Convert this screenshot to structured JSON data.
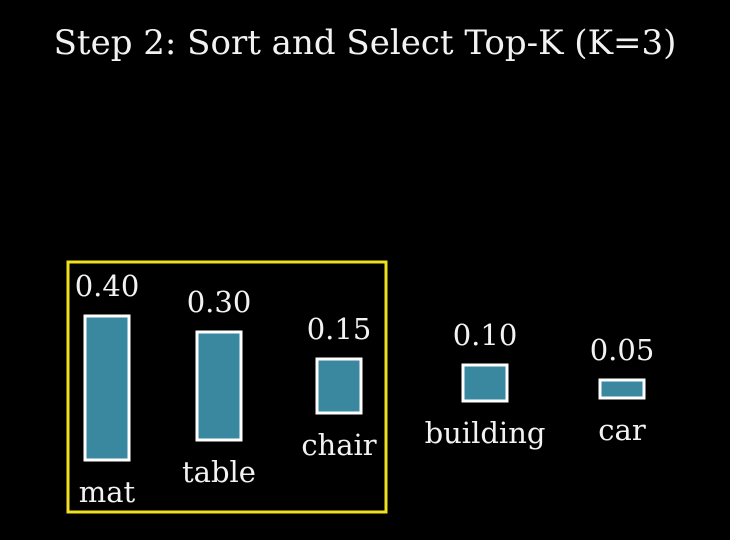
{
  "title": "Step 2: Sort and Select Top-K (K=3)",
  "colors": {
    "background": "#000000",
    "bar_fill": "#3a87a0",
    "bar_stroke": "#ffffff",
    "highlight": "#f0e020",
    "text": "#f2f2f2"
  },
  "selection": {
    "k": 3,
    "highlighted_items": [
      "mat",
      "table",
      "chair"
    ]
  },
  "chart_data": {
    "type": "bar",
    "categories": [
      "mat",
      "table",
      "chair",
      "building",
      "car"
    ],
    "values": [
      0.4,
      0.3,
      0.15,
      0.1,
      0.05
    ],
    "value_labels": [
      "0.40",
      "0.30",
      "0.15",
      "0.10",
      "0.05"
    ],
    "title": "Step 2: Sort and Select Top-K (K=3)",
    "xlabel": "",
    "ylabel": "",
    "grid": false,
    "legend": "none"
  }
}
